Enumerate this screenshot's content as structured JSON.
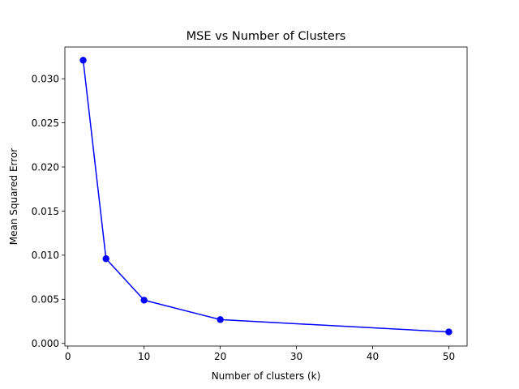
{
  "chart_data": {
    "type": "line",
    "title": "MSE vs Number of Clusters",
    "xlabel": "Number of clusters (k)",
    "ylabel": "Mean Squared Error",
    "xlim": [
      -0.4,
      52.4
    ],
    "ylim": [
      -0.0003,
      0.0336
    ],
    "xticks": [
      0,
      10,
      20,
      30,
      40,
      50
    ],
    "yticks": [
      0.0,
      0.005,
      0.01,
      0.015,
      0.02,
      0.025,
      0.03
    ],
    "ytick_labels": [
      "0.000",
      "0.005",
      "0.010",
      "0.015",
      "0.020",
      "0.025",
      "0.030"
    ],
    "grid": false,
    "series": [
      {
        "x": [
          2,
          5,
          10,
          20,
          50
        ],
        "y": [
          0.0321,
          0.0096,
          0.0049,
          0.0027,
          0.0013
        ],
        "color": "#0000ff",
        "marker": "circle"
      }
    ]
  }
}
